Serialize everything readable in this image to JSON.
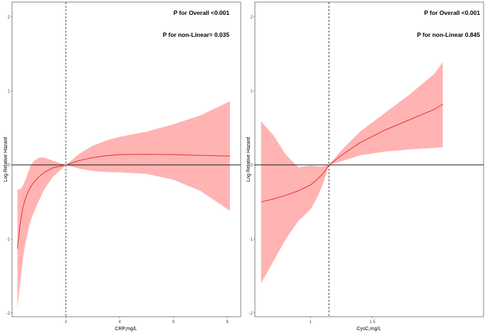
{
  "chart_data": [
    {
      "type": "line",
      "xlabel": "CRP,mg/L",
      "ylabel": "Log Relative Hazard",
      "xlim": [
        0,
        8.5
      ],
      "ylim": [
        -2.05,
        2.2
      ],
      "xticks": [
        2,
        4,
        6,
        8
      ],
      "yticks": [
        -2,
        -1,
        0,
        1,
        2
      ],
      "reference_x": 2,
      "reference_y": 0,
      "annotations": [
        "P for Overall <0.001",
        "P for non-Linear= 0.035"
      ],
      "series": [
        {
          "x": [
            0.2,
            0.3,
            0.4,
            0.5,
            0.6,
            0.7,
            0.8,
            1.0,
            1.2,
            1.5,
            2.0,
            2.5,
            3.0,
            3.5,
            4.0,
            5.0,
            6.0,
            7.0,
            8.1
          ],
          "y": [
            -1.13,
            -0.8,
            -0.58,
            -0.45,
            -0.36,
            -0.29,
            -0.24,
            -0.16,
            -0.1,
            -0.04,
            0.0,
            0.06,
            0.1,
            0.125,
            0.14,
            0.145,
            0.14,
            0.13,
            0.12
          ],
          "lower": [
            -1.93,
            -1.6,
            -1.28,
            -1.05,
            -0.88,
            -0.74,
            -0.65,
            -0.48,
            -0.33,
            -0.17,
            0.0,
            -0.05,
            -0.08,
            -0.095,
            -0.1,
            -0.12,
            -0.2,
            -0.35,
            -0.62
          ],
          "upper": [
            -0.33,
            -0.33,
            -0.28,
            -0.2,
            -0.1,
            0.0,
            0.05,
            0.1,
            0.1,
            0.06,
            0.0,
            0.15,
            0.26,
            0.33,
            0.38,
            0.45,
            0.55,
            0.67,
            0.86
          ]
        }
      ]
    },
    {
      "type": "line",
      "xlabel": "CysC,mg/L",
      "ylabel": "Log Relative Hazard",
      "xlim": [
        0.55,
        2.4
      ],
      "ylim": [
        -2.05,
        2.2
      ],
      "xticks": [
        1.0,
        1.5
      ],
      "yticks": [
        -2,
        -1,
        0,
        1,
        2
      ],
      "reference_x": 1.15,
      "reference_y": 0,
      "annotations": [
        "P for Overall <0.001",
        "P for non-Linear 0.845"
      ],
      "series": [
        {
          "x": [
            0.6,
            0.7,
            0.8,
            0.9,
            1.0,
            1.05,
            1.1,
            1.15,
            1.25,
            1.4,
            1.6,
            1.8,
            2.0,
            2.07
          ],
          "y": [
            -0.5,
            -0.46,
            -0.41,
            -0.35,
            -0.27,
            -0.2,
            -0.12,
            0.0,
            0.13,
            0.3,
            0.47,
            0.61,
            0.75,
            0.82
          ],
          "lower": [
            -1.6,
            -1.3,
            -1.0,
            -0.76,
            -0.6,
            -0.45,
            -0.26,
            0.0,
            0.05,
            0.13,
            0.18,
            0.21,
            0.23,
            0.24
          ],
          "upper": [
            0.59,
            0.4,
            0.14,
            -0.03,
            -0.01,
            -0.02,
            -0.02,
            0.0,
            0.2,
            0.45,
            0.7,
            0.95,
            1.23,
            1.39
          ]
        }
      ]
    }
  ],
  "style": {
    "ribbon_color": "#ffb3b3",
    "line_color": "#e8312d"
  }
}
